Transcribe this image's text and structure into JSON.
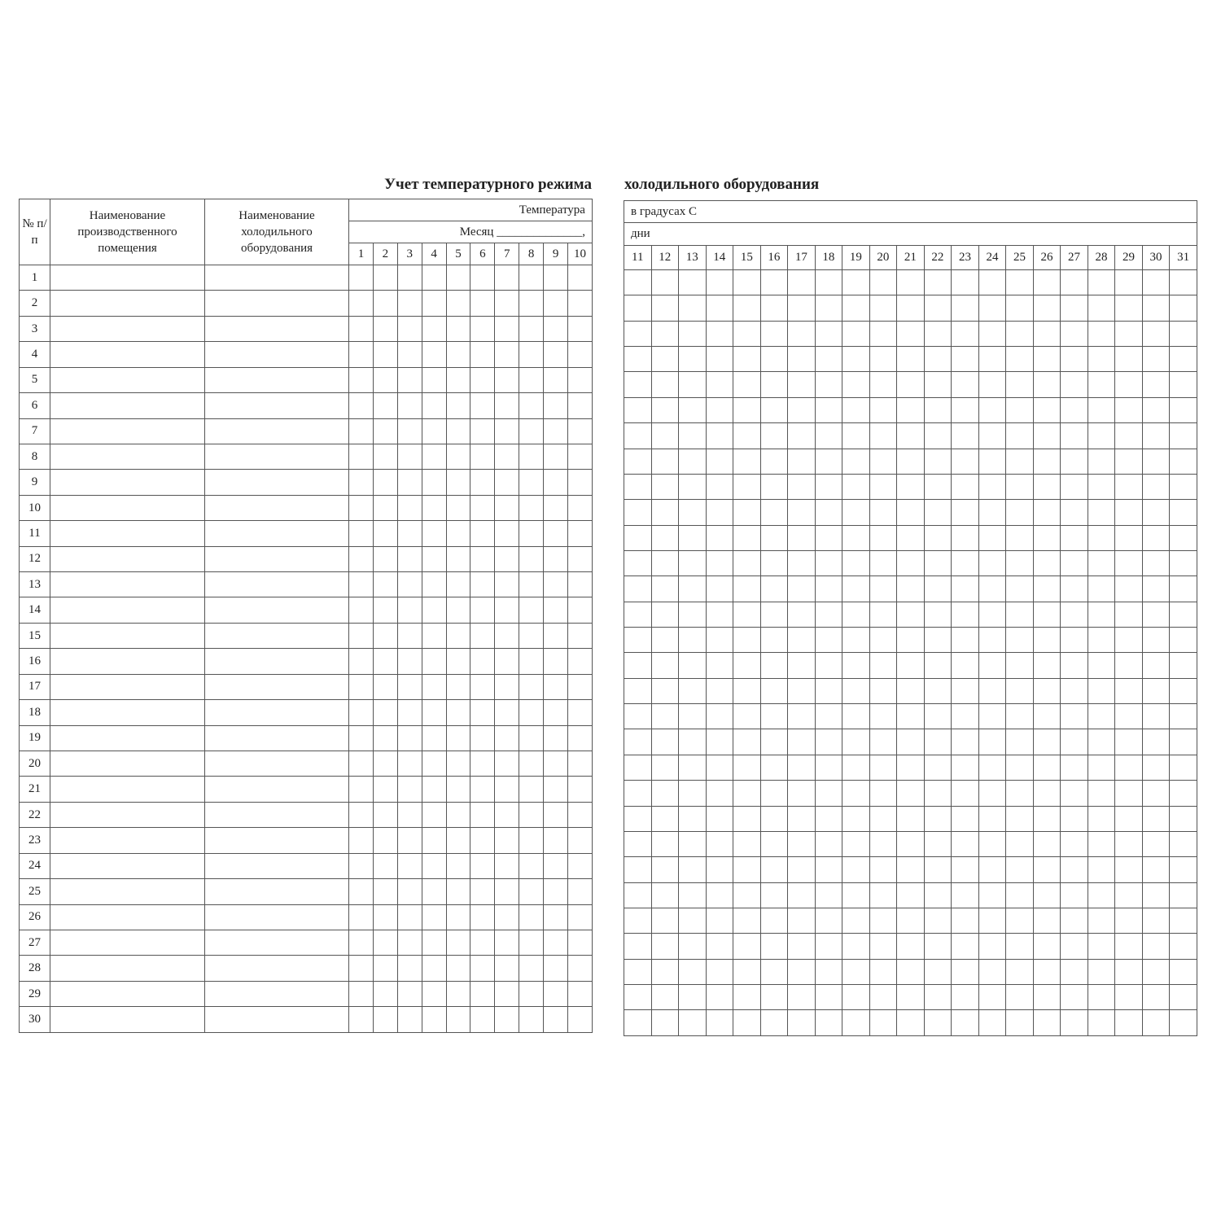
{
  "title": {
    "left": "Учет температурного режима",
    "right": "холодильного оборудования"
  },
  "left_table": {
    "col_number": "№ п/п",
    "col_room": "Наименование производственного помещения",
    "col_equipment": "Наименование холодильного оборудования",
    "temperature_label": "Температура",
    "month_label": "Месяц ______________,",
    "days": [
      "1",
      "2",
      "3",
      "4",
      "5",
      "6",
      "7",
      "8",
      "9",
      "10"
    ],
    "row_numbers": [
      "1",
      "2",
      "3",
      "4",
      "5",
      "6",
      "7",
      "8",
      "9",
      "10",
      "11",
      "12",
      "13",
      "14",
      "15",
      "16",
      "17",
      "18",
      "19",
      "20",
      "21",
      "22",
      "23",
      "24",
      "25",
      "26",
      "27",
      "28",
      "29",
      "30"
    ]
  },
  "right_table": {
    "units_label": "в градусах С",
    "days_label": "дни",
    "days": [
      "11",
      "12",
      "13",
      "14",
      "15",
      "16",
      "17",
      "18",
      "19",
      "20",
      "21",
      "22",
      "23",
      "24",
      "25",
      "26",
      "27",
      "28",
      "29",
      "30",
      "31"
    ],
    "row_count": 30
  }
}
